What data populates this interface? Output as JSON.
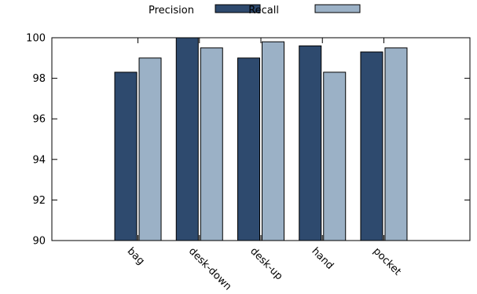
{
  "chart_data": {
    "type": "bar",
    "categories": [
      "bag",
      "desk-down",
      "desk-up",
      "hand",
      "pocket"
    ],
    "series": [
      {
        "name": "Precision",
        "color": "#2e4a6e",
        "values": [
          98.3,
          100.0,
          99.0,
          99.6,
          99.3
        ]
      },
      {
        "name": "Recall",
        "color": "#9bb1c6",
        "values": [
          99.0,
          99.5,
          99.8,
          98.3,
          99.5
        ]
      }
    ],
    "yticks": [
      90,
      92,
      94,
      96,
      98,
      100
    ],
    "ylim": [
      90,
      100
    ],
    "legend_position": "top-center",
    "grid": false
  }
}
